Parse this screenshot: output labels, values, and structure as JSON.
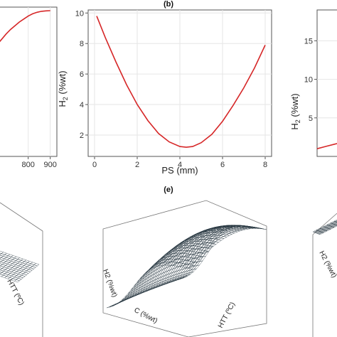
{
  "panels": {
    "b": "(b)",
    "e": "(e)"
  },
  "chart_data": [
    {
      "type": "line",
      "title": "",
      "xlabel": "",
      "ylabel": "",
      "x_ticks": [
        "800",
        "900"
      ],
      "xlim": [
        640,
        930
      ],
      "ylim": [
        0,
        10
      ],
      "x": [
        640,
        660,
        680,
        700,
        720,
        740,
        760,
        780,
        800,
        820,
        840,
        860,
        880,
        900
      ],
      "y": [
        7.1,
        7.5,
        7.85,
        8.2,
        8.5,
        8.75,
        9.0,
        9.2,
        9.4,
        9.55,
        9.65,
        9.72,
        9.75,
        9.76
      ],
      "grid": true,
      "color": "#d62728"
    },
    {
      "type": "line",
      "title": "(b)",
      "xlabel": "PS (mm)",
      "ylabel": "H2 (%wt)",
      "x_ticks": [
        "0",
        "2",
        "4",
        "6",
        "8"
      ],
      "y_ticks": [
        "2",
        "4",
        "6",
        "8",
        "10"
      ],
      "xlim": [
        -0.3,
        8.3
      ],
      "ylim": [
        0.6,
        10.2
      ],
      "x": [
        0.1,
        0.5,
        1.0,
        1.5,
        2.0,
        2.5,
        3.0,
        3.5,
        4.0,
        4.3,
        4.6,
        5.0,
        5.5,
        6.0,
        6.5,
        7.0,
        7.5,
        8.0
      ],
      "y": [
        9.8,
        8.4,
        6.8,
        5.3,
        4.0,
        2.95,
        2.1,
        1.55,
        1.25,
        1.2,
        1.25,
        1.5,
        2.05,
        2.9,
        3.95,
        5.1,
        6.4,
        7.9
      ],
      "grid": true,
      "color": "#d62728"
    },
    {
      "type": "line",
      "title": "",
      "xlabel": "",
      "ylabel": "H2 (%wt)",
      "y_ticks": [
        "5",
        "10",
        "15"
      ],
      "ylim": [
        0,
        19
      ],
      "x": [
        0,
        0.5,
        1,
        1.5,
        2
      ],
      "y": [
        1.0,
        1.3,
        1.6,
        1.9,
        2.2
      ],
      "grid": true,
      "color": "#d62728"
    },
    {
      "type": "surface",
      "axes": [
        "H2 (%wt)",
        "HTT (ºC)"
      ],
      "color": "#a9cde0"
    },
    {
      "type": "surface",
      "axes": [
        "H2 (%wt)",
        "C (%wt)",
        "HTT (ºC)"
      ],
      "color": "#a9cde0"
    },
    {
      "type": "surface",
      "axes": [
        "H2 (%wt)"
      ],
      "color": "#a9cde0"
    }
  ],
  "labels": {
    "left_y_axis_right": "H2 (%wt)",
    "surf_left_x": "HTT (ºC)",
    "surf_mid_z": "H2 (%wt)",
    "surf_mid_x": "C (%wt)",
    "surf_mid_y": "HTT (ºC)",
    "surf_right_z": "H2 (%wt)"
  }
}
